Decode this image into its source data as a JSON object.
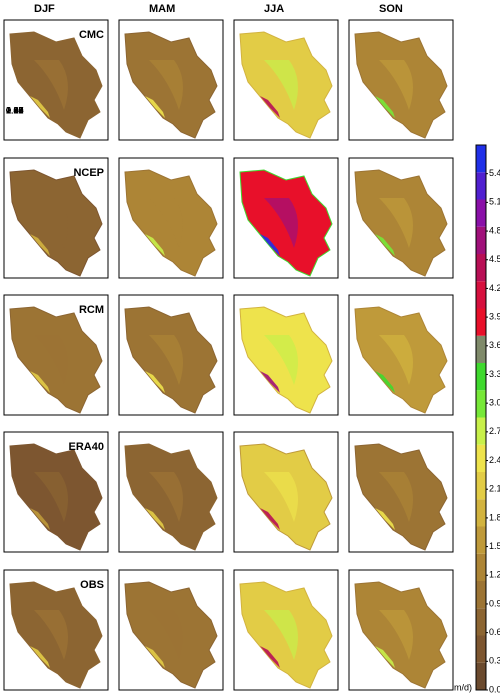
{
  "columns": [
    "DJF",
    "MAM",
    "JJA",
    "SON"
  ],
  "rows": [
    {
      "label": "CMC",
      "values": [
        "0.80",
        "1.02",
        "2.17",
        "1.38"
      ]
    },
    {
      "label": "NCEP",
      "values": [
        "0.63",
        "1.17",
        "3.95",
        "1.26"
      ]
    },
    {
      "label": "RCM",
      "values": [
        "0.92",
        "0.98",
        "2.29",
        "1.47"
      ]
    },
    {
      "label": "ERA40",
      "values": [
        "0.57",
        "0.85",
        "2.06",
        "1.03"
      ]
    },
    {
      "label": "OBS",
      "values": [
        "0.81",
        "0.89",
        "2.19",
        "1.24"
      ]
    }
  ],
  "colorbar": {
    "unit": "m/d)",
    "lim": [
      0.0,
      5.7
    ],
    "ticks": [
      {
        "value": 0.0,
        "label": "0.0"
      },
      {
        "value": 0.3,
        "label": "0.3"
      },
      {
        "value": 0.6,
        "label": "0.6"
      },
      {
        "value": 0.9,
        "label": "0.9"
      },
      {
        "value": 1.2,
        "label": "1.2"
      },
      {
        "value": 1.5,
        "label": "1.5"
      },
      {
        "value": 1.8,
        "label": "1.8"
      },
      {
        "value": 2.1,
        "label": "2.1"
      },
      {
        "value": 2.4,
        "label": "2.4"
      },
      {
        "value": 2.7,
        "label": "2.7"
      },
      {
        "value": 3.0,
        "label": "3.0"
      },
      {
        "value": 3.3,
        "label": "3.3"
      },
      {
        "value": 3.6,
        "label": "3.6"
      },
      {
        "value": 3.9,
        "label": "3.9"
      },
      {
        "value": 4.2,
        "label": "4.2"
      },
      {
        "value": 4.5,
        "label": "4.5"
      },
      {
        "value": 4.8,
        "label": "4.8"
      },
      {
        "value": 5.1,
        "label": "5.1"
      },
      {
        "value": 5.4,
        "label": "5.4"
      }
    ]
  }
}
